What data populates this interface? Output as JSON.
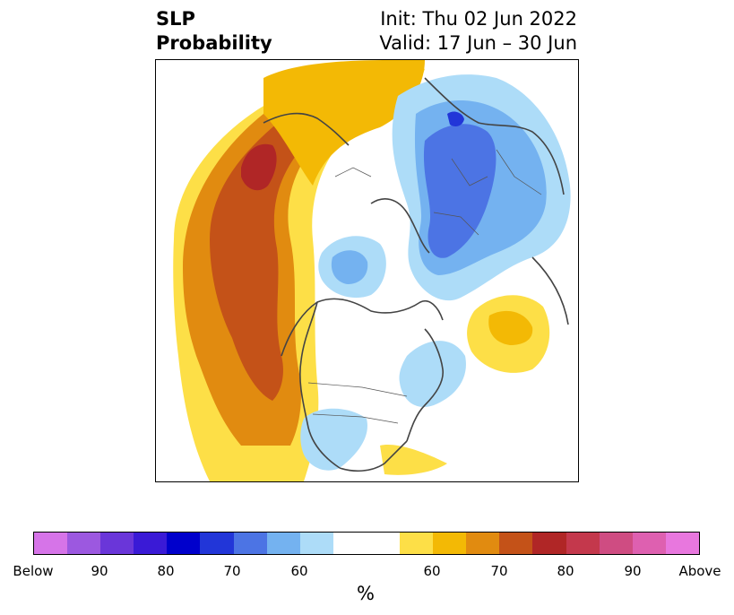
{
  "title": {
    "left_line1": "SLP",
    "left_line2": "Probability",
    "right_line1": "Init: Thu 02 Jun 2022",
    "right_line2": "Valid: 17 Jun – 30 Jun"
  },
  "colorbar": {
    "unit_label": "%",
    "colors": [
      "#d674e8",
      "#9c58e0",
      "#6a36d9",
      "#3a1ad6",
      "#0000cc",
      "#2236d8",
      "#4c74e4",
      "#74b2f0",
      "#addcf8",
      "#ffffff",
      "#ffffff",
      "#fddf47",
      "#f3b905",
      "#e18b10",
      "#c45218",
      "#b02626",
      "#c4384c",
      "#cf4c82",
      "#de60b0",
      "#e877de"
    ],
    "tick_labels": [
      "Below",
      "90",
      "80",
      "70",
      "60",
      "60",
      "70",
      "80",
      "90",
      "Above"
    ]
  },
  "colors": {
    "below_dark": "#4c74e4",
    "below_light": "#addcf8",
    "above_light": "#fddf47",
    "above_orange": "#e18b10",
    "above_dark": "#c45218",
    "coastline": "#444444"
  }
}
